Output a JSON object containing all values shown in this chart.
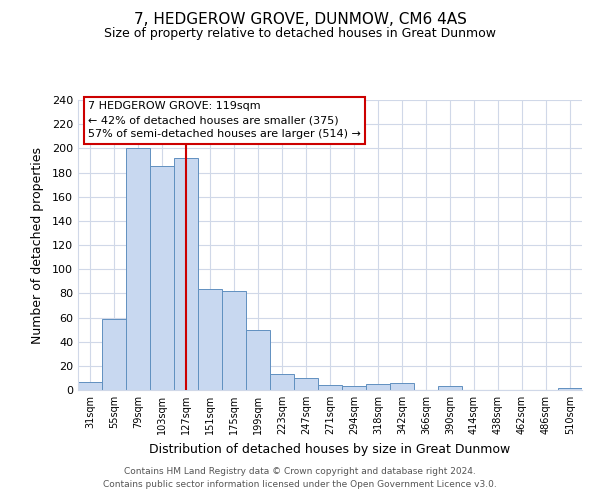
{
  "title": "7, HEDGEROW GROVE, DUNMOW, CM6 4AS",
  "subtitle": "Size of property relative to detached houses in Great Dunmow",
  "xlabel": "Distribution of detached houses by size in Great Dunmow",
  "ylabel": "Number of detached properties",
  "bar_labels": [
    "31sqm",
    "55sqm",
    "79sqm",
    "103sqm",
    "127sqm",
    "151sqm",
    "175sqm",
    "199sqm",
    "223sqm",
    "247sqm",
    "271sqm",
    "294sqm",
    "318sqm",
    "342sqm",
    "366sqm",
    "390sqm",
    "414sqm",
    "438sqm",
    "462sqm",
    "486sqm",
    "510sqm"
  ],
  "bar_values": [
    7,
    59,
    200,
    185,
    192,
    84,
    82,
    50,
    13,
    10,
    4,
    3,
    5,
    6,
    0,
    3,
    0,
    0,
    0,
    0,
    2
  ],
  "bar_color": "#c8d8f0",
  "bar_edge_color": "#6090c0",
  "vline_x": 4,
  "vline_color": "#cc0000",
  "ylim": [
    0,
    240
  ],
  "yticks": [
    0,
    20,
    40,
    60,
    80,
    100,
    120,
    140,
    160,
    180,
    200,
    220,
    240
  ],
  "annotation_title": "7 HEDGEROW GROVE: 119sqm",
  "annotation_line1": "← 42% of detached houses are smaller (375)",
  "annotation_line2": "57% of semi-detached houses are larger (514) →",
  "footer1": "Contains HM Land Registry data © Crown copyright and database right 2024.",
  "footer2": "Contains public sector information licensed under the Open Government Licence v3.0.",
  "background_color": "#ffffff",
  "grid_color": "#d0d8e8",
  "title_fontsize": 11,
  "subtitle_fontsize": 9
}
